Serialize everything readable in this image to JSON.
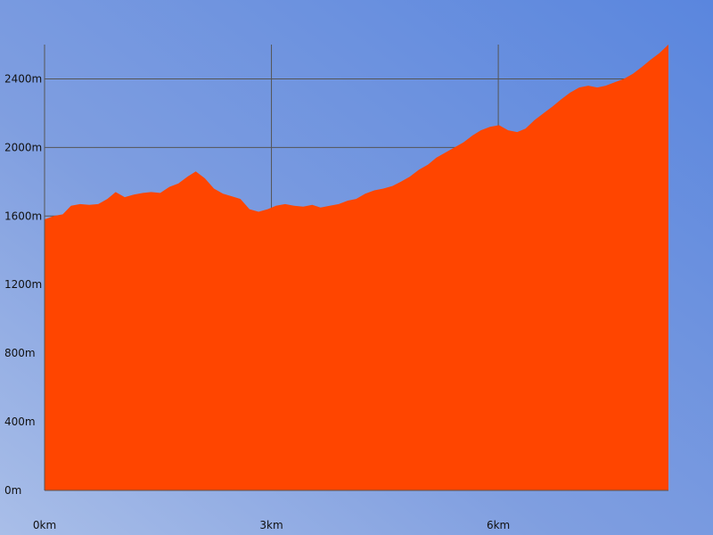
{
  "chart_data": {
    "type": "area",
    "title": "",
    "xlabel": "",
    "ylabel": "",
    "xlim": [
      0,
      8.25
    ],
    "ylim": [
      0,
      2600
    ],
    "x_ticks": [
      {
        "value": 0,
        "label": "0km"
      },
      {
        "value": 3,
        "label": "3km"
      },
      {
        "value": 6,
        "label": "6km"
      }
    ],
    "y_ticks": [
      {
        "value": 0,
        "label": "0m"
      },
      {
        "value": 400,
        "label": "400m"
      },
      {
        "value": 800,
        "label": "800m"
      },
      {
        "value": 1200,
        "label": "1200m"
      },
      {
        "value": 1600,
        "label": "1600m"
      },
      {
        "value": 2000,
        "label": "2000m"
      },
      {
        "value": 2400,
        "label": "2400m"
      }
    ],
    "grid": true,
    "series": [
      {
        "color": "#ff4500",
        "x": [
          0,
          0.12,
          0.24,
          0.35,
          0.47,
          0.59,
          0.71,
          0.83,
          0.94,
          1.06,
          1.18,
          1.3,
          1.41,
          1.53,
          1.65,
          1.77,
          1.89,
          2.0,
          2.12,
          2.24,
          2.36,
          2.48,
          2.59,
          2.71,
          2.83,
          2.95,
          3.06,
          3.18,
          3.3,
          3.42,
          3.54,
          3.65,
          3.77,
          3.89,
          4.01,
          4.12,
          4.24,
          4.36,
          4.48,
          4.6,
          4.71,
          4.83,
          4.95,
          5.07,
          5.18,
          5.3,
          5.42,
          5.54,
          5.66,
          5.77,
          5.89,
          6.01,
          6.13,
          6.25,
          6.36,
          6.48,
          6.6,
          6.72,
          6.83,
          6.95,
          7.07,
          7.19,
          7.31,
          7.42,
          7.54,
          7.66,
          7.78,
          7.9,
          8.01,
          8.13,
          8.25
        ],
        "y": [
          1580,
          1600,
          1610,
          1660,
          1670,
          1665,
          1670,
          1700,
          1740,
          1710,
          1725,
          1735,
          1740,
          1735,
          1770,
          1790,
          1830,
          1860,
          1820,
          1760,
          1730,
          1715,
          1700,
          1640,
          1625,
          1640,
          1660,
          1670,
          1660,
          1655,
          1665,
          1650,
          1660,
          1670,
          1690,
          1700,
          1730,
          1750,
          1760,
          1775,
          1800,
          1830,
          1870,
          1900,
          1940,
          1970,
          2000,
          2030,
          2070,
          2100,
          2120,
          2130,
          2100,
          2090,
          2110,
          2160,
          2200,
          2240,
          2280,
          2320,
          2350,
          2360,
          2350,
          2360,
          2380,
          2400,
          2430,
          2470,
          2510,
          2550,
          2600
        ]
      }
    ]
  }
}
